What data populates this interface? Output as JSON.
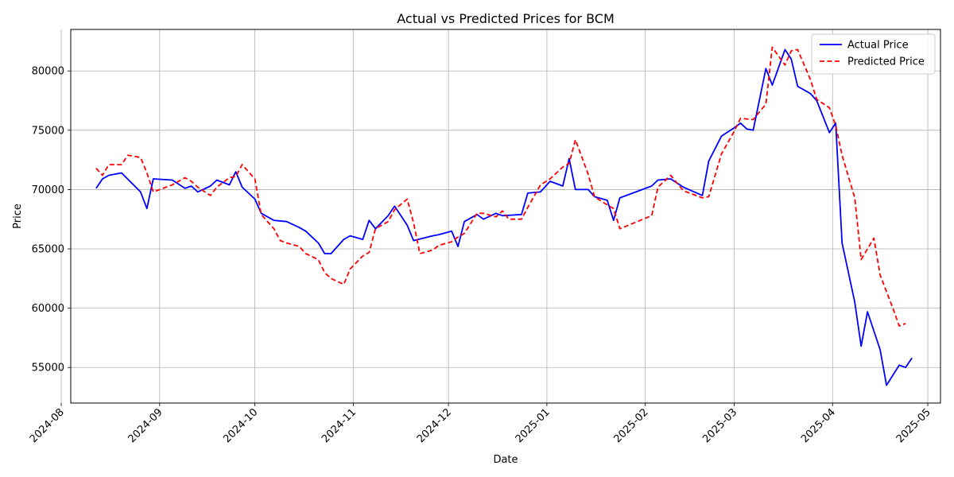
{
  "chart_data": {
    "type": "line",
    "title": "Actual vs Predicted Prices for BCM",
    "xlabel": "Date",
    "ylabel": "Price",
    "grid": true,
    "legend_position": "top-right",
    "xlim": [
      "2024-08-04",
      "2025-05-05"
    ],
    "ylim": [
      52000,
      83500
    ],
    "x_ticks": [
      "2024-08",
      "2024-09",
      "2024-10",
      "2024-11",
      "2024-12",
      "2025-01",
      "2025-02",
      "2025-03",
      "2025-04",
      "2025-05"
    ],
    "y_ticks": [
      55000,
      60000,
      65000,
      70000,
      75000,
      80000
    ],
    "series": [
      {
        "name": "Actual Price",
        "color": "#0000ff",
        "style": "solid",
        "points": [
          [
            "2024-08-12",
            70100
          ],
          [
            "2024-08-14",
            70900
          ],
          [
            "2024-08-16",
            71200
          ],
          [
            "2024-08-20",
            71400
          ],
          [
            "2024-08-26",
            69800
          ],
          [
            "2024-08-28",
            68400
          ],
          [
            "2024-08-30",
            70900
          ],
          [
            "2024-09-05",
            70800
          ],
          [
            "2024-09-09",
            70100
          ],
          [
            "2024-09-11",
            70300
          ],
          [
            "2024-09-13",
            69800
          ],
          [
            "2024-09-17",
            70300
          ],
          [
            "2024-09-19",
            70800
          ],
          [
            "2024-09-23",
            70400
          ],
          [
            "2024-09-25",
            71500
          ],
          [
            "2024-09-27",
            70200
          ],
          [
            "2024-10-01",
            69200
          ],
          [
            "2024-10-03",
            68000
          ],
          [
            "2024-10-07",
            67400
          ],
          [
            "2024-10-11",
            67300
          ],
          [
            "2024-10-15",
            66800
          ],
          [
            "2024-10-17",
            66500
          ],
          [
            "2024-10-21",
            65500
          ],
          [
            "2024-10-23",
            64600
          ],
          [
            "2024-10-25",
            64600
          ],
          [
            "2024-10-29",
            65800
          ],
          [
            "2024-10-31",
            66100
          ],
          [
            "2024-11-04",
            65800
          ],
          [
            "2024-11-06",
            67400
          ],
          [
            "2024-11-08",
            66700
          ],
          [
            "2024-11-12",
            67800
          ],
          [
            "2024-11-14",
            68600
          ],
          [
            "2024-11-18",
            67000
          ],
          [
            "2024-11-20",
            65700
          ],
          [
            "2024-11-26",
            66100
          ],
          [
            "2024-11-28",
            66200
          ],
          [
            "2024-12-02",
            66500
          ],
          [
            "2024-12-04",
            65200
          ],
          [
            "2024-12-06",
            67300
          ],
          [
            "2024-12-10",
            67900
          ],
          [
            "2024-12-12",
            67500
          ],
          [
            "2024-12-16",
            68000
          ],
          [
            "2024-12-18",
            67800
          ],
          [
            "2024-12-24",
            67900
          ],
          [
            "2024-12-26",
            69700
          ],
          [
            "2024-12-30",
            69800
          ],
          [
            "2025-01-02",
            70700
          ],
          [
            "2025-01-06",
            70300
          ],
          [
            "2025-01-08",
            72600
          ],
          [
            "2025-01-10",
            70000
          ],
          [
            "2025-01-14",
            70000
          ],
          [
            "2025-01-16",
            69400
          ],
          [
            "2025-01-20",
            69100
          ],
          [
            "2025-01-22",
            67400
          ],
          [
            "2025-01-24",
            69300
          ],
          [
            "2025-02-03",
            70300
          ],
          [
            "2025-02-05",
            70800
          ],
          [
            "2025-02-09",
            70900
          ],
          [
            "2025-02-13",
            70200
          ],
          [
            "2025-02-19",
            69500
          ],
          [
            "2025-02-21",
            72400
          ],
          [
            "2025-02-25",
            74500
          ],
          [
            "2025-03-01",
            75200
          ],
          [
            "2025-03-03",
            75600
          ],
          [
            "2025-03-05",
            75100
          ],
          [
            "2025-03-07",
            75000
          ],
          [
            "2025-03-11",
            80200
          ],
          [
            "2025-03-13",
            78800
          ],
          [
            "2025-03-17",
            81800
          ],
          [
            "2025-03-19",
            81000
          ],
          [
            "2025-03-21",
            78700
          ],
          [
            "2025-03-25",
            78100
          ],
          [
            "2025-03-27",
            77500
          ],
          [
            "2025-03-31",
            74800
          ],
          [
            "2025-04-02",
            75600
          ],
          [
            "2025-04-04",
            65500
          ],
          [
            "2025-04-08",
            60500
          ],
          [
            "2025-04-10",
            56800
          ],
          [
            "2025-04-12",
            59700
          ],
          [
            "2025-04-16",
            56500
          ],
          [
            "2025-04-18",
            53500
          ],
          [
            "2025-04-22",
            55200
          ],
          [
            "2025-04-24",
            55000
          ],
          [
            "2025-04-26",
            55800
          ]
        ]
      },
      {
        "name": "Predicted Price",
        "color": "#ff0000",
        "style": "dashed",
        "points": [
          [
            "2024-08-12",
            71800
          ],
          [
            "2024-08-14",
            71200
          ],
          [
            "2024-08-16",
            72100
          ],
          [
            "2024-08-20",
            72100
          ],
          [
            "2024-08-22",
            72900
          ],
          [
            "2024-08-26",
            72700
          ],
          [
            "2024-08-28",
            71400
          ],
          [
            "2024-08-30",
            69800
          ],
          [
            "2024-09-05",
            70400
          ],
          [
            "2024-09-09",
            71000
          ],
          [
            "2024-09-11",
            70700
          ],
          [
            "2024-09-13",
            70200
          ],
          [
            "2024-09-17",
            69500
          ],
          [
            "2024-09-19",
            70200
          ],
          [
            "2024-09-23",
            71000
          ],
          [
            "2024-09-25",
            71100
          ],
          [
            "2024-09-27",
            72100
          ],
          [
            "2024-10-01",
            70900
          ],
          [
            "2024-10-03",
            67900
          ],
          [
            "2024-10-07",
            66700
          ],
          [
            "2024-10-09",
            65700
          ],
          [
            "2024-10-11",
            65500
          ],
          [
            "2024-10-15",
            65200
          ],
          [
            "2024-10-17",
            64600
          ],
          [
            "2024-10-21",
            64100
          ],
          [
            "2024-10-23",
            63000
          ],
          [
            "2024-10-25",
            62500
          ],
          [
            "2024-10-29",
            62000
          ],
          [
            "2024-10-31",
            63300
          ],
          [
            "2024-11-04",
            64400
          ],
          [
            "2024-11-06",
            64700
          ],
          [
            "2024-11-08",
            66700
          ],
          [
            "2024-11-12",
            67300
          ],
          [
            "2024-11-14",
            68300
          ],
          [
            "2024-11-18",
            69200
          ],
          [
            "2024-11-20",
            67200
          ],
          [
            "2024-11-22",
            64600
          ],
          [
            "2024-11-26",
            64900
          ],
          [
            "2024-11-28",
            65300
          ],
          [
            "2024-12-02",
            65600
          ],
          [
            "2024-12-04",
            66000
          ],
          [
            "2024-12-06",
            66300
          ],
          [
            "2024-12-10",
            68000
          ],
          [
            "2024-12-12",
            68000
          ],
          [
            "2024-12-16",
            67700
          ],
          [
            "2024-12-18",
            68200
          ],
          [
            "2024-12-20",
            67500
          ],
          [
            "2024-12-24",
            67500
          ],
          [
            "2024-12-26",
            68500
          ],
          [
            "2024-12-30",
            70400
          ],
          [
            "2025-01-02",
            70900
          ],
          [
            "2025-01-06",
            71900
          ],
          [
            "2025-01-08",
            72200
          ],
          [
            "2025-01-10",
            74200
          ],
          [
            "2025-01-14",
            71300
          ],
          [
            "2025-01-16",
            69400
          ],
          [
            "2025-01-20",
            68700
          ],
          [
            "2025-01-22",
            68400
          ],
          [
            "2025-01-24",
            66700
          ],
          [
            "2025-02-03",
            67800
          ],
          [
            "2025-02-05",
            70200
          ],
          [
            "2025-02-09",
            71200
          ],
          [
            "2025-02-13",
            69900
          ],
          [
            "2025-02-19",
            69300
          ],
          [
            "2025-02-21",
            69400
          ],
          [
            "2025-02-25",
            73000
          ],
          [
            "2025-03-01",
            74900
          ],
          [
            "2025-03-03",
            76000
          ],
          [
            "2025-03-07",
            75900
          ],
          [
            "2025-03-11",
            77200
          ],
          [
            "2025-03-13",
            82000
          ],
          [
            "2025-03-17",
            80500
          ],
          [
            "2025-03-19",
            81700
          ],
          [
            "2025-03-21",
            81800
          ],
          [
            "2025-03-25",
            79300
          ],
          [
            "2025-03-27",
            77600
          ],
          [
            "2025-03-31",
            76900
          ],
          [
            "2025-04-02",
            75400
          ],
          [
            "2025-04-04",
            72900
          ],
          [
            "2025-04-08",
            69300
          ],
          [
            "2025-04-10",
            64100
          ],
          [
            "2025-04-14",
            65900
          ],
          [
            "2025-04-16",
            62800
          ],
          [
            "2025-04-20",
            60000
          ],
          [
            "2025-04-22",
            58500
          ],
          [
            "2025-04-24",
            58700
          ]
        ]
      }
    ]
  }
}
